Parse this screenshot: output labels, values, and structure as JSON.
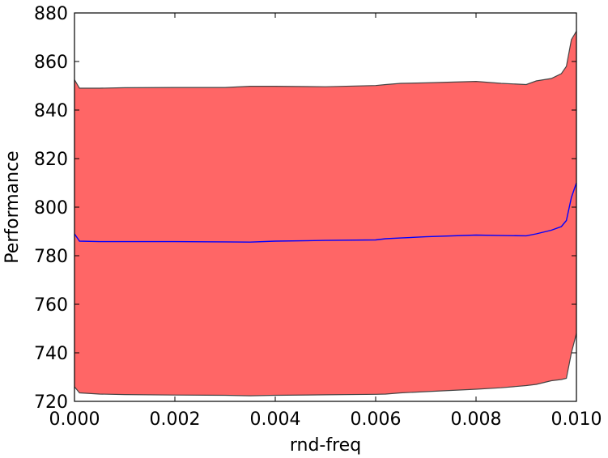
{
  "chart_data": {
    "type": "area",
    "title": "",
    "xlabel": "rnd-freq",
    "ylabel": "Performance",
    "xlim": [
      0.0,
      0.01
    ],
    "ylim": [
      720,
      880
    ],
    "xticks": [
      0.0,
      0.002,
      0.004,
      0.006,
      0.008,
      0.01
    ],
    "xtick_labels": [
      "0.000",
      "0.002",
      "0.004",
      "0.006",
      "0.008",
      "0.010"
    ],
    "yticks": [
      720,
      740,
      760,
      780,
      800,
      820,
      840,
      860,
      880
    ],
    "ytick_labels": [
      "720",
      "740",
      "760",
      "780",
      "800",
      "820",
      "840",
      "860",
      "880"
    ],
    "grid": false,
    "band_color": "#ff6666",
    "band_edge_color": "#444444",
    "line_color": "#0000ff",
    "x": [
      0.0,
      0.0001,
      0.0005,
      0.001,
      0.002,
      0.003,
      0.0035,
      0.004,
      0.005,
      0.006,
      0.0062,
      0.0065,
      0.007,
      0.008,
      0.0085,
      0.009,
      0.0092,
      0.0095,
      0.0097,
      0.0098,
      0.0099,
      0.01
    ],
    "upper": [
      852.5,
      849.0,
      849.0,
      849.2,
      849.3,
      849.3,
      849.8,
      849.8,
      849.6,
      850.1,
      850.5,
      851.0,
      851.2,
      851.8,
      851.0,
      850.5,
      852.0,
      853.0,
      855.0,
      858.0,
      869.0,
      872.5
    ],
    "mean": [
      789.0,
      786.0,
      785.8,
      785.8,
      785.8,
      785.7,
      785.6,
      786.0,
      786.3,
      786.5,
      787.0,
      787.3,
      787.8,
      788.5,
      788.3,
      788.2,
      789.0,
      790.5,
      792.0,
      794.5,
      804.0,
      810.0
    ],
    "lower": [
      726.0,
      723.5,
      723.0,
      722.8,
      722.6,
      722.5,
      722.3,
      722.5,
      722.7,
      722.9,
      723.0,
      723.5,
      724.0,
      725.0,
      725.6,
      726.5,
      727.0,
      728.5,
      729.0,
      729.5,
      740.0,
      748.0
    ]
  }
}
